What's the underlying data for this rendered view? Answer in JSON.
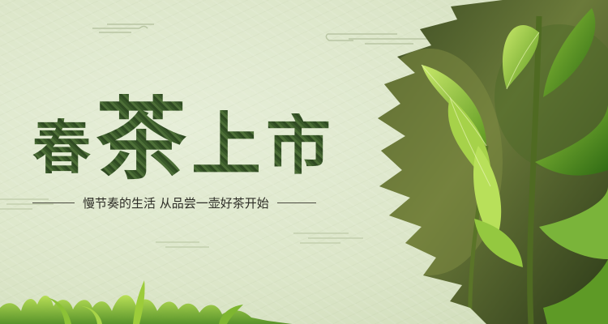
{
  "banner": {
    "title_chars": [
      "春",
      "茶",
      "上",
      "市"
    ],
    "subtitle": "慢节奏的生活 从品尝一壶好茶开始"
  },
  "colors": {
    "background": "#dce6c9",
    "title_green": "#3a5a2a",
    "leaf_light": "#a8d04a",
    "leaf_dark": "#3f7a1c"
  },
  "images": {
    "photo": "tea-leaves-closeup",
    "foliage": "tea-shoots-bottom-edge"
  }
}
